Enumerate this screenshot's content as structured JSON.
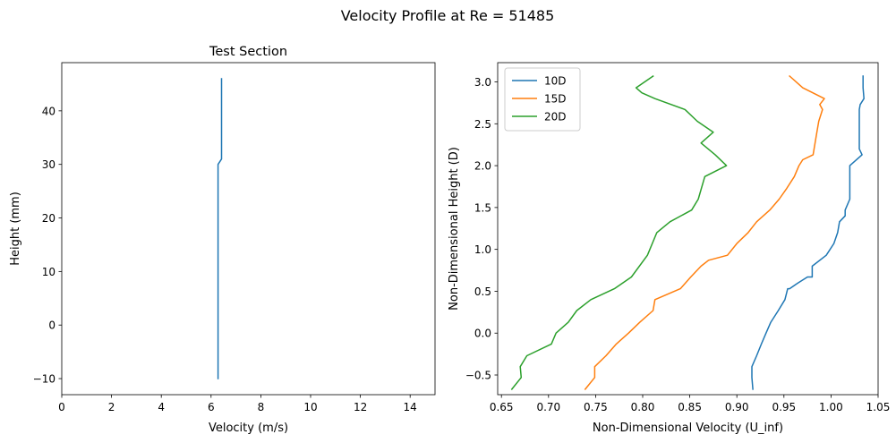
{
  "suptitle": "Velocity Profile at Re = 51485",
  "colors": {
    "blue": "#1f77b4",
    "orange": "#ff7f0e",
    "green": "#2ca02c"
  },
  "chart_data": [
    {
      "type": "line",
      "title": "Test Section",
      "xlabel": "Velocity (m/s)",
      "ylabel": "Height (mm)",
      "xlim": [
        0,
        15
      ],
      "ylim": [
        -13,
        49
      ],
      "xticks": [
        0,
        2,
        4,
        6,
        8,
        10,
        12,
        14
      ],
      "xtick_labels": [
        "0",
        "2",
        "4",
        "6",
        "8",
        "10",
        "12",
        "14"
      ],
      "yticks": [
        -10,
        0,
        10,
        20,
        30,
        40
      ],
      "ytick_labels": [
        "−10",
        "0",
        "10",
        "20",
        "30",
        "40"
      ],
      "grid": false,
      "series": [
        {
          "color": "#1f77b4",
          "x": [
            6.28,
            6.28,
            6.28,
            6.28,
            6.28,
            6.28,
            6.42,
            6.42,
            6.42,
            6.42
          ],
          "y": [
            -10,
            0,
            10,
            20,
            28,
            30,
            31,
            32,
            40,
            46
          ]
        }
      ]
    },
    {
      "type": "line",
      "xlabel": "Non-Dimensional Velocity (U_inf)",
      "ylabel": "Non-Dimensional Height (D)",
      "xlim": [
        0.646,
        1.05
      ],
      "ylim": [
        -0.735,
        3.23
      ],
      "xticks": [
        0.65,
        0.7,
        0.75,
        0.8,
        0.85,
        0.9,
        0.95,
        1.0,
        1.05
      ],
      "xtick_labels": [
        "0.65",
        "0.70",
        "0.75",
        "0.80",
        "0.85",
        "0.90",
        "0.95",
        "1.00",
        "1.05"
      ],
      "yticks": [
        -0.5,
        0.0,
        0.5,
        1.0,
        1.5,
        2.0,
        2.5,
        3.0
      ],
      "ytick_labels": [
        "−0.5",
        "0.0",
        "0.5",
        "1.0",
        "1.5",
        "2.0",
        "2.5",
        "3.0"
      ],
      "grid": false,
      "legend_position": "upper left",
      "series": [
        {
          "name": "10D",
          "color": "#1f77b4",
          "x": [
            0.917,
            0.916,
            0.916,
            0.921,
            0.926,
            0.931,
            0.936,
            0.944,
            0.951,
            0.954,
            0.956,
            0.965,
            0.975,
            0.98,
            0.98,
            0.995,
            1.003,
            1.007,
            1.009,
            1.015,
            1.015,
            1.02,
            1.02,
            1.02,
            1.02,
            1.033,
            1.03,
            1.03,
            1.03,
            1.03,
            1.03,
            1.031,
            1.035,
            1.034,
            1.034
          ],
          "y": [
            -0.67,
            -0.53,
            -0.4,
            -0.27,
            -0.13,
            0.0,
            0.13,
            0.27,
            0.4,
            0.53,
            0.53,
            0.6,
            0.67,
            0.67,
            0.8,
            0.93,
            1.07,
            1.2,
            1.33,
            1.4,
            1.47,
            1.6,
            1.73,
            1.87,
            2.0,
            2.13,
            2.2,
            2.27,
            2.4,
            2.53,
            2.67,
            2.73,
            2.8,
            2.93,
            3.07
          ]
        },
        {
          "name": "15D",
          "color": "#ff7f0e",
          "x": [
            0.739,
            0.749,
            0.749,
            0.761,
            0.772,
            0.785,
            0.797,
            0.811,
            0.813,
            0.84,
            0.851,
            0.862,
            0.87,
            0.89,
            0.9,
            0.912,
            0.921,
            0.935,
            0.945,
            0.953,
            0.961,
            0.966,
            0.97,
            0.981,
            0.985,
            0.987,
            0.991,
            0.988,
            0.993,
            0.97,
            0.956
          ],
          "y": [
            -0.67,
            -0.53,
            -0.4,
            -0.27,
            -0.13,
            0.0,
            0.13,
            0.27,
            0.4,
            0.53,
            0.67,
            0.8,
            0.87,
            0.93,
            1.07,
            1.2,
            1.33,
            1.47,
            1.6,
            1.73,
            1.87,
            2.0,
            2.07,
            2.13,
            2.4,
            2.53,
            2.67,
            2.73,
            2.8,
            2.93,
            3.07
          ]
        },
        {
          "name": "20D",
          "color": "#2ca02c",
          "x": [
            0.661,
            0.671,
            0.67,
            0.677,
            0.703,
            0.708,
            0.721,
            0.73,
            0.745,
            0.77,
            0.788,
            0.805,
            0.815,
            0.829,
            0.852,
            0.859,
            0.866,
            0.889,
            0.877,
            0.862,
            0.875,
            0.858,
            0.845,
            0.813,
            0.799,
            0.793,
            0.811
          ],
          "y": [
            -0.67,
            -0.53,
            -0.4,
            -0.27,
            -0.13,
            0.0,
            0.13,
            0.27,
            0.4,
            0.53,
            0.67,
            0.93,
            1.2,
            1.33,
            1.47,
            1.6,
            1.87,
            2.0,
            2.13,
            2.27,
            2.4,
            2.53,
            2.67,
            2.8,
            2.87,
            2.93,
            3.07
          ]
        }
      ]
    }
  ]
}
